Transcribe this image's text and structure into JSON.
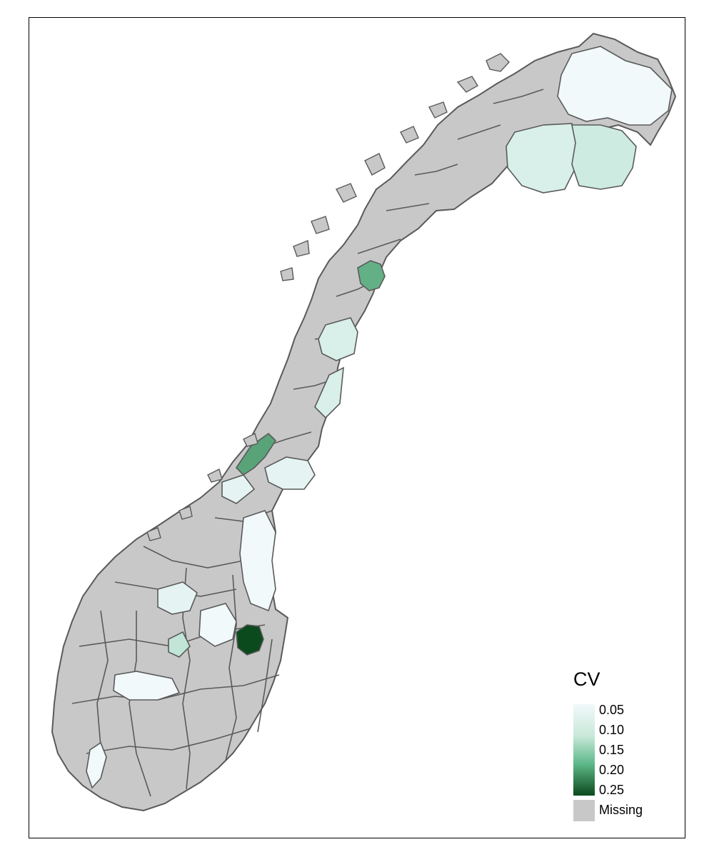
{
  "legend": {
    "title": "CV",
    "ticks": [
      "0.05",
      "0.10",
      "0.15",
      "0.20",
      "0.25"
    ],
    "missing_label": "Missing"
  },
  "colors": {
    "missing": "#c8c8c8",
    "border": "#5a5a5a",
    "scale_low": "#f1f9fb",
    "scale_mid": "#7ac9a0",
    "scale_high": "#0b4a1c"
  },
  "regions": [
    {
      "id": "finnmark-east",
      "cv": 0.05
    },
    {
      "id": "finnmark-center",
      "cv": 0.07
    },
    {
      "id": "finnmark-south",
      "cv": 0.08
    },
    {
      "id": "nordland-north",
      "cv": 0.17
    },
    {
      "id": "nordland-inland",
      "cv": 0.07
    },
    {
      "id": "trondelag-coast",
      "cv": 0.18
    },
    {
      "id": "trondelag-inland",
      "cv": 0.06
    },
    {
      "id": "hedmark-north",
      "cv": 0.05
    },
    {
      "id": "oppland-west",
      "cv": 0.06
    },
    {
      "id": "buskerud-north",
      "cv": 0.09
    },
    {
      "id": "akershus-east",
      "cv": 0.25
    },
    {
      "id": "rogaland-inland",
      "cv": 0.05
    },
    {
      "id": "telemark",
      "cv": 0.05
    },
    {
      "id": "agder-inland",
      "cv": 0.05
    }
  ]
}
